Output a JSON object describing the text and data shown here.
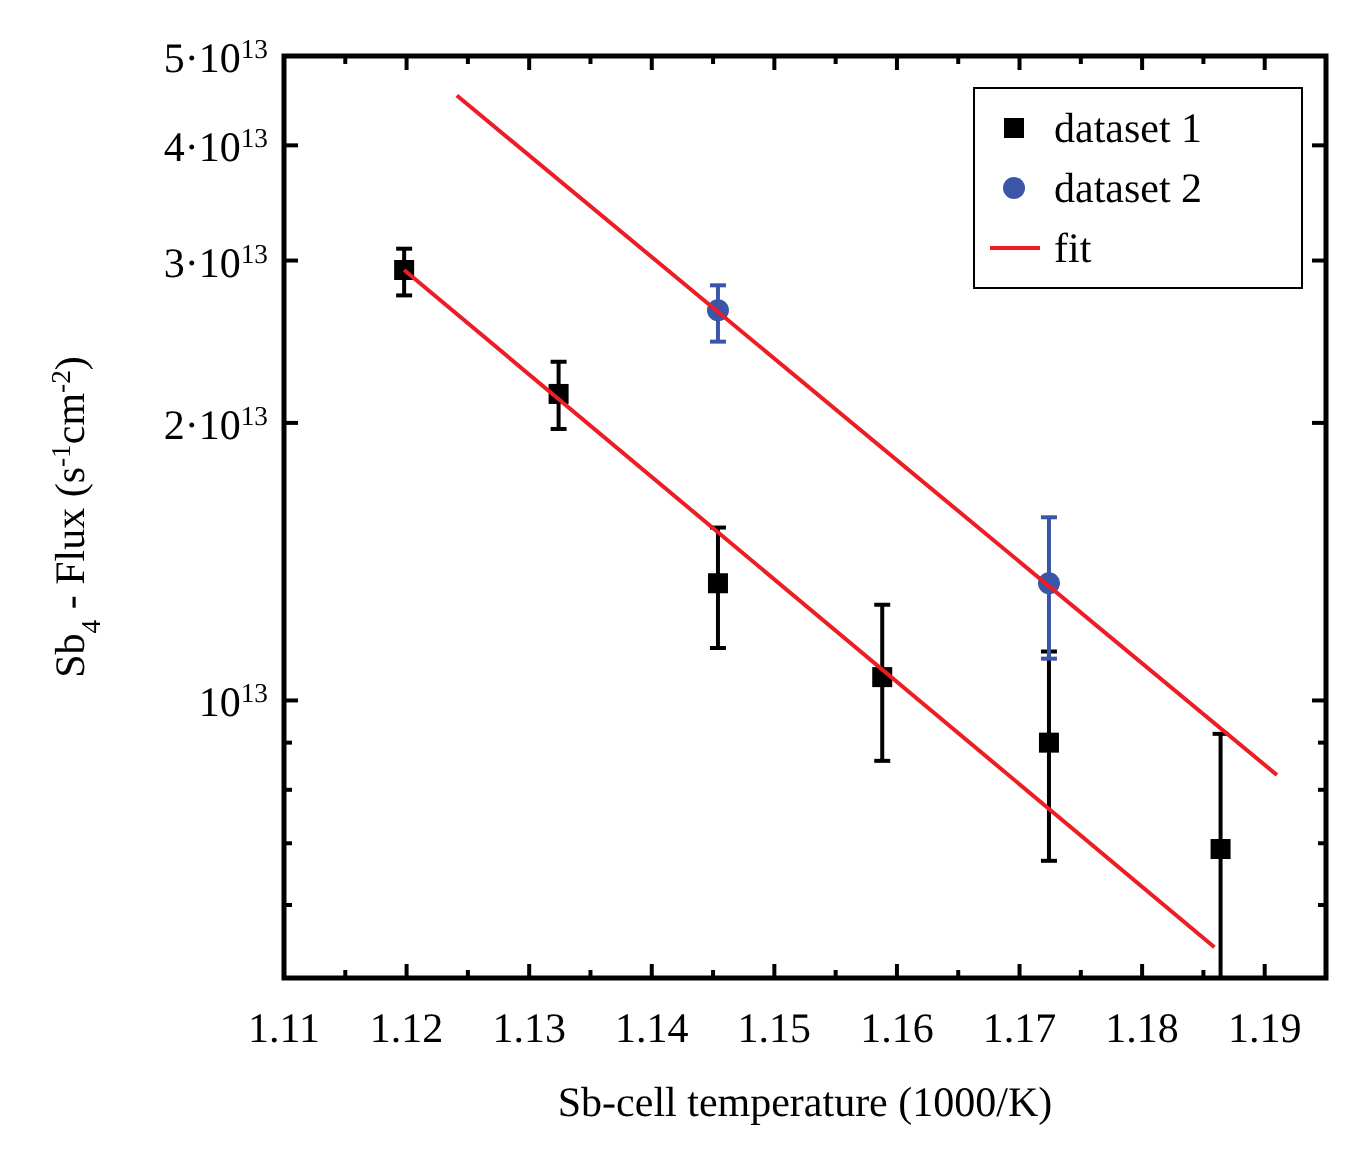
{
  "chart_data": {
    "type": "scatter",
    "xlabel": "Sb-cell temperature (1000/K)",
    "ylabel": "Sb$_{4}$ - Flux (s$^{-1}$cm$^{-2}$)",
    "xlim": [
      1.11,
      1.195
    ],
    "xticks": [
      1.11,
      {
        "value": 1.115,
        "label": null
      },
      1.12,
      {
        "value": 1.125,
        "label": null
      },
      1.13,
      {
        "value": 1.135,
        "label": null
      },
      1.14,
      {
        "value": 1.145,
        "label": null
      },
      1.15,
      {
        "value": 1.155,
        "label": null
      },
      1.16,
      {
        "value": 1.165,
        "label": null
      },
      1.17,
      {
        "value": 1.175,
        "label": null
      },
      1.18,
      {
        "value": 1.185,
        "label": null
      },
      1.19
    ],
    "ylim": [
      5000000000000.0,
      50000000000000.0
    ],
    "log": "y",
    "yticks": [
      {
        "value": 6000000000000.0,
        "label": null
      },
      {
        "value": 7000000000000.0,
        "label": null
      },
      {
        "value": 8000000000000.0,
        "label": null
      },
      {
        "value": 9000000000000.0,
        "label": null
      },
      {
        "value": 10000000000000.0,
        "label": "10$^{13}$"
      },
      {
        "value": 20000000000000.0,
        "label": "2·10$^{13}$"
      },
      {
        "value": 30000000000000.0,
        "label": "3·10$^{13}$"
      },
      {
        "value": 40000000000000.0,
        "label": "4·10$^{13}$"
      },
      {
        "value": 50000000000000.0,
        "label": "5·10$^{13}$"
      }
    ],
    "legend": "top right",
    "grid": false,
    "series": [
      {
        "name": "dataset 1",
        "marker": "square",
        "color": "#000000",
        "x": [
          1.1198,
          1.1324,
          1.1454,
          1.1588,
          1.1724,
          1.1864
        ],
        "values": [
          29300000000000.0,
          21500000000000.0,
          13400000000000.0,
          10600000000000.0,
          9000000000000.0,
          6900000000000.0
        ],
        "errors": [
          [
            27500000000000.0,
            30900000000000.0
          ],
          [
            19700000000000.0,
            23300000000000.0
          ],
          [
            11400000000000.0,
            15400000000000.0
          ],
          [
            8600000000000.0,
            12700000000000.0
          ],
          [
            6700000000000.0,
            11300000000000.0
          ],
          [
            5000000000000.0,
            9200000000000.0
          ]
        ]
      },
      {
        "name": "dataset 2",
        "marker": "circle",
        "color": "#3b55a8",
        "x": [
          1.1454,
          1.1724
        ],
        "values": [
          26500000000000.0,
          13400000000000.0
        ],
        "errors": [
          [
            24500000000000.0,
            28200000000000.0
          ],
          [
            11100000000000.0,
            15800000000000.0
          ]
        ]
      },
      {
        "name": "fit",
        "type": "line",
        "marker": "none",
        "line_style": "solid",
        "color": "#ee1c25",
        "x": [
          1.1198,
          1.1859
        ],
        "values": [
          29300000000000.0,
          5400000000000.0
        ]
      },
      {
        "type": "line",
        "marker": "none",
        "line_style": "solid",
        "color": "#ee1c25",
        "x": [
          1.1241,
          1.191
        ],
        "values": [
          45300000000000.0,
          8300000000000.0
        ]
      }
    ]
  }
}
